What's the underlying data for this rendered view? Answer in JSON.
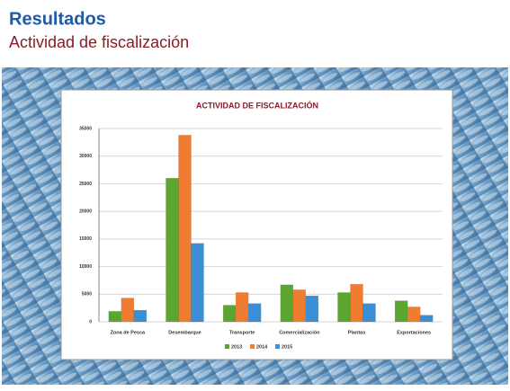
{
  "header": {
    "title": "Resultados",
    "subtitle": "Actividad de fiscalización"
  },
  "chart_data": {
    "type": "bar",
    "title": "ACTIVIDAD DE FISCALIZACIÓN",
    "categories": [
      "Zona de Pesca",
      "Desembarque",
      "Transporte",
      "Comercialización",
      "Plantas",
      "Exportaciones"
    ],
    "series": [
      {
        "name": "2013",
        "color": "#5aa62e",
        "values": [
          1900,
          26000,
          3000,
          6700,
          5300,
          3800
        ]
      },
      {
        "name": "2014",
        "color": "#ef7d31",
        "values": [
          4300,
          33800,
          5300,
          5800,
          6800,
          2700
        ]
      },
      {
        "name": "2015",
        "color": "#3b8fd6",
        "values": [
          2100,
          14200,
          3300,
          4700,
          3300,
          1200
        ]
      }
    ],
    "ylim": [
      0,
      35000
    ],
    "yticks": [
      0,
      5000,
      10000,
      15000,
      20000,
      25000,
      30000,
      35000
    ],
    "grid": true
  }
}
